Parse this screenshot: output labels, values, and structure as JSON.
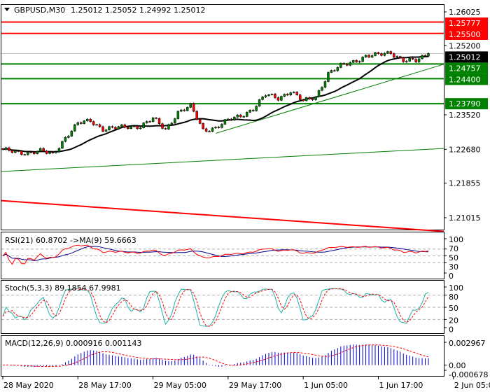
{
  "header": {
    "symbol": "GBPUSD,M30",
    "ohlc": "1.25012 1.25052 1.24992 1.25012",
    "menu_icon": "triangle-down-icon"
  },
  "chart_data": {
    "type": "candlestick",
    "interval_between_samples": "2h",
    "close_samples": [
      1.2265,
      1.2262,
      1.226,
      1.2263,
      1.2256,
      1.2297,
      1.233,
      1.2338,
      1.2318,
      1.2319,
      1.2323,
      1.2325,
      1.2342,
      1.2316,
      1.2359,
      1.2372,
      1.2315,
      1.2321,
      1.2338,
      1.235,
      1.2367,
      1.24,
      1.2393,
      1.241,
      1.2384,
      1.2396,
      1.2453,
      1.247,
      1.2482,
      1.2495,
      1.2497,
      1.2504,
      1.2485,
      1.2482,
      1.25012
    ],
    "price_ticks": [
      "1.26025",
      "1.25200",
      "1.23520",
      "1.22680",
      "1.21855",
      "1.21015"
    ],
    "price_range": [
      1.205,
      1.262
    ],
    "current_price": "1.25012",
    "levels": [
      {
        "price": "1.25777",
        "color": "#ff0000"
      },
      {
        "price": "1.25500",
        "color": "#ff0000"
      },
      {
        "price": "1.24757",
        "color": "#008000"
      },
      {
        "price": "1.24400",
        "color": "#008000"
      },
      {
        "price": "1.23790",
        "color": "#008000"
      }
    ],
    "trendlines": [
      {
        "from": [
          0,
          1.2214
        ],
        "to": [
          1,
          1.227
        ],
        "color": "#008000"
      },
      {
        "from": [
          0.485,
          1.2307
        ],
        "to": [
          1,
          1.2475
        ],
        "color": "#008000"
      },
      {
        "from": [
          0,
          1.2143
        ],
        "to": [
          1,
          1.2068
        ],
        "color": "#ff0000"
      }
    ],
    "time_labels": [
      "28 May 2020",
      "28 May 17:00",
      "29 May 05:00",
      "29 May 17:00",
      "1 Jun 05:00",
      "1 Jun 17:00",
      "2 Jun 05:00"
    ],
    "colors": {
      "bull": "#008000",
      "bear": "#ff0000",
      "ma": "#000000"
    },
    "indicators": {
      "rsi": {
        "label": "RSI(21) 60.8702  ->MA(9) 59.6663",
        "ticks": [
          "100",
          "70",
          "50",
          "30",
          "0"
        ],
        "colors": [
          "#ff0000",
          "#00008b"
        ]
      },
      "stoch": {
        "label": "Stoch(5,3,3) 89.1854 67.9981",
        "ticks": [
          "100",
          "80",
          "50",
          "20",
          "0"
        ],
        "colors": [
          "#20b2aa",
          "#ff0000"
        ]
      },
      "macd": {
        "label": "MACD(12,26,9) 0.000916 0.001143",
        "ticks": [
          "0.002967",
          "0.00",
          "-0.000678"
        ],
        "range": [
          -0.000678,
          0.002967
        ],
        "colors": [
          "#0000cd",
          "#ff0000"
        ]
      }
    }
  }
}
